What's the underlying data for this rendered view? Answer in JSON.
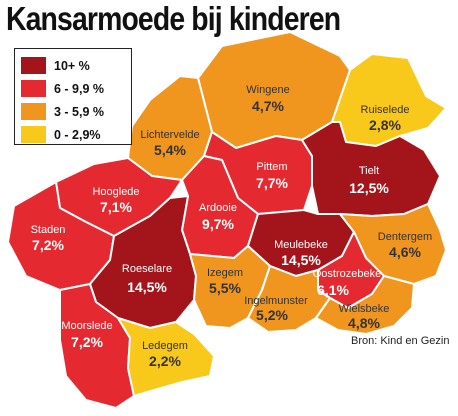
{
  "title": "Kansarmoede bij kinderen",
  "source": "Bron: Kind en Gezin",
  "colors": {
    "c10plus": "#a3141b",
    "c6_9": "#e42a30",
    "c3_5": "#f0961f",
    "c0_2": "#f8c81b",
    "border": "#ffffff"
  },
  "legend": [
    {
      "label": "10+ %",
      "color": "#a3141b"
    },
    {
      "label": "6 - 9,9 %",
      "color": "#e42a30"
    },
    {
      "label": "3 - 5,9 %",
      "color": "#f0961f"
    },
    {
      "label": "0 - 2,9%",
      "color": "#f8c81b"
    }
  ],
  "municipalities": [
    {
      "id": "wingene",
      "name": "Wingene",
      "value": "4,7%",
      "color": "#f0961f",
      "text": "#333333"
    },
    {
      "id": "ruiselede",
      "name": "Ruiselede",
      "value": "2,8%",
      "color": "#f8c81b",
      "text": "#333333"
    },
    {
      "id": "lichtervelde",
      "name": "Lichtervelde",
      "value": "5,4%",
      "color": "#f0961f",
      "text": "#333333"
    },
    {
      "id": "pittem",
      "name": "Pittem",
      "value": "7,7%",
      "color": "#e42a30",
      "text": "#ffffff"
    },
    {
      "id": "tielt",
      "name": "Tielt",
      "value": "12,5%",
      "color": "#a3141b",
      "text": "#ffffff"
    },
    {
      "id": "hooglede",
      "name": "Hooglede",
      "value": "7,1%",
      "color": "#e42a30",
      "text": "#ffffff"
    },
    {
      "id": "ardooie",
      "name": "Ardooie",
      "value": "9,7%",
      "color": "#e42a30",
      "text": "#ffffff"
    },
    {
      "id": "staden",
      "name": "Staden",
      "value": "7,2%",
      "color": "#e42a30",
      "text": "#ffffff"
    },
    {
      "id": "meulebeke",
      "name": "Meulebeke",
      "value": "14,5%",
      "color": "#a3141b",
      "text": "#ffffff"
    },
    {
      "id": "dentergem",
      "name": "Dentergem",
      "value": "4,6%",
      "color": "#f0961f",
      "text": "#333333"
    },
    {
      "id": "roeselare",
      "name": "Roeselare",
      "value": "14,5%",
      "color": "#a3141b",
      "text": "#ffffff"
    },
    {
      "id": "izegem",
      "name": "Izegem",
      "value": "5,5%",
      "color": "#f0961f",
      "text": "#333333"
    },
    {
      "id": "oostrozebeke",
      "name": "Oostrozebeke",
      "value": "6,1%",
      "color": "#e42a30",
      "text": "#ffffff"
    },
    {
      "id": "ingelmunster",
      "name": "Ingelmunster",
      "value": "5,2%",
      "color": "#f0961f",
      "text": "#333333"
    },
    {
      "id": "wielsbeke",
      "name": "Wielsbeke",
      "value": "4,8%",
      "color": "#f0961f",
      "text": "#333333"
    },
    {
      "id": "moorslede",
      "name": "Moorslede",
      "value": "7,2%",
      "color": "#e42a30",
      "text": "#ffffff"
    },
    {
      "id": "ledegem",
      "name": "Ledegem",
      "value": "2,2%",
      "color": "#f8c81b",
      "text": "#333333"
    }
  ]
}
